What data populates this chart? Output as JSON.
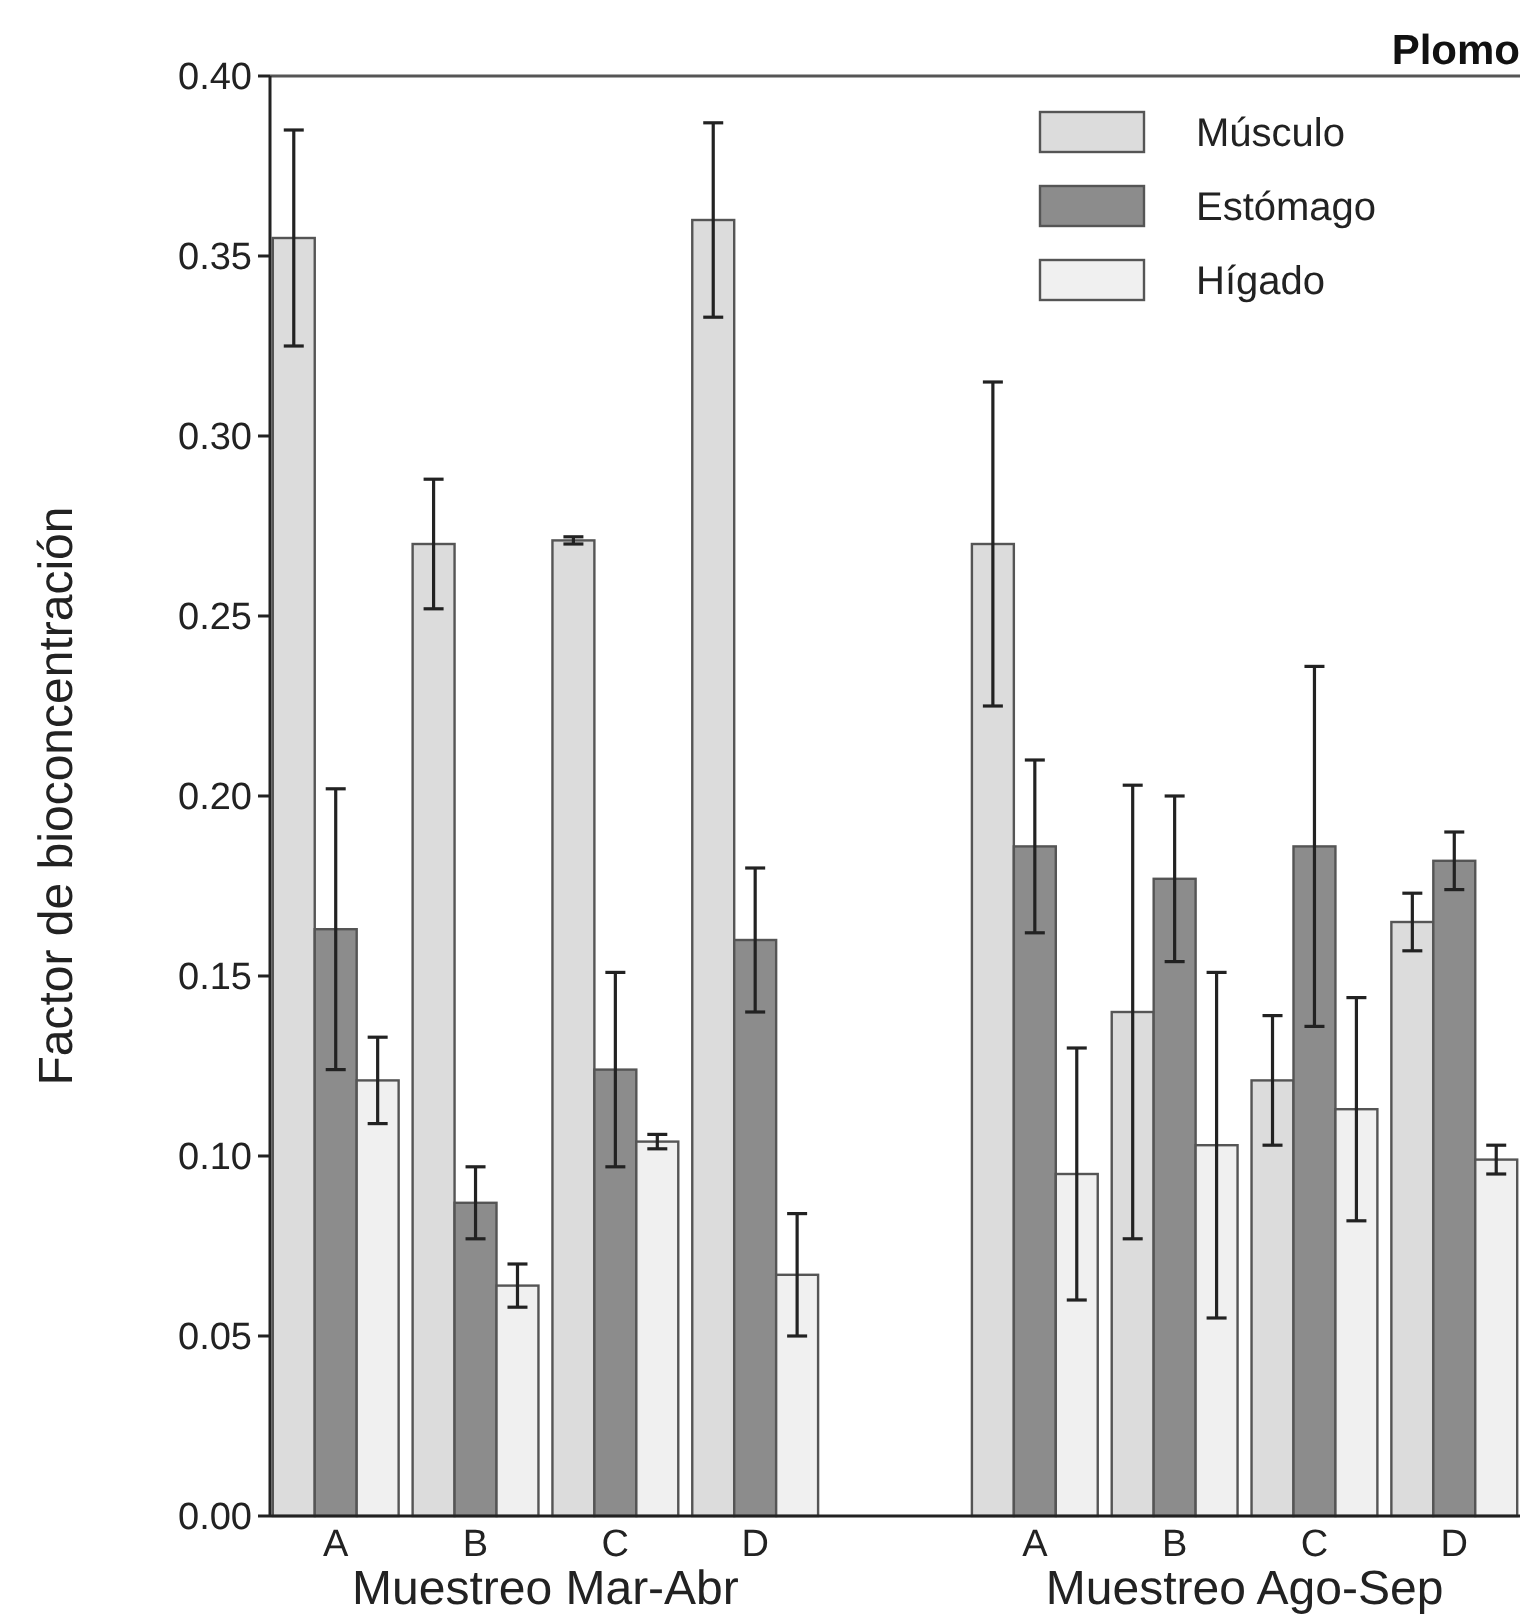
{
  "chart_data": {
    "type": "bar",
    "title": "Plomo",
    "ylabel": "Factor de bioconcentración",
    "categories": [
      "A",
      "B",
      "C",
      "D",
      null,
      "A",
      "B",
      "C",
      "D"
    ],
    "series": [
      {
        "name": "Músculo",
        "color": "#dcdcdc",
        "values": [
          0.355,
          0.27,
          0.271,
          0.36,
          null,
          0.27,
          0.14,
          0.121,
          0.165
        ],
        "errors": [
          0.03,
          0.018,
          0.001,
          0.027,
          null,
          0.045,
          [
            0.077,
            0.203
          ],
          0.018,
          0.008
        ]
      },
      {
        "name": "Estómago",
        "color": "#8c8c8c",
        "values": [
          0.163,
          0.087,
          0.124,
          0.16,
          null,
          0.186,
          0.177,
          0.186,
          0.182
        ],
        "errors": [
          0.039,
          0.01,
          0.027,
          0.02,
          null,
          0.024,
          0.023,
          0.05,
          0.008
        ]
      },
      {
        "name": "Hígado",
        "color": "#f0f0f0",
        "values": [
          0.121,
          0.064,
          0.104,
          0.067,
          null,
          0.095,
          0.103,
          0.113,
          0.099
        ],
        "errors": [
          0.012,
          0.006,
          0.002,
          0.017,
          null,
          0.035,
          0.048,
          0.031,
          0.004
        ]
      }
    ],
    "annotations": [
      "Muestreo Mar-Abr",
      "Muestreo Ago-Sep"
    ],
    "ylim": [
      0,
      0.4
    ],
    "yticks": [
      {
        "value": 0,
        "label": "0.00"
      },
      0.05,
      {
        "value": 0.1,
        "label": "0.10"
      },
      0.15,
      {
        "value": 0.2,
        "label": "0.20"
      },
      0.25,
      {
        "value": 0.3,
        "label": "0.30"
      },
      0.35,
      {
        "value": 0.4,
        "label": "0.40"
      }
    ],
    "legend": "top right",
    "grid": false
  }
}
